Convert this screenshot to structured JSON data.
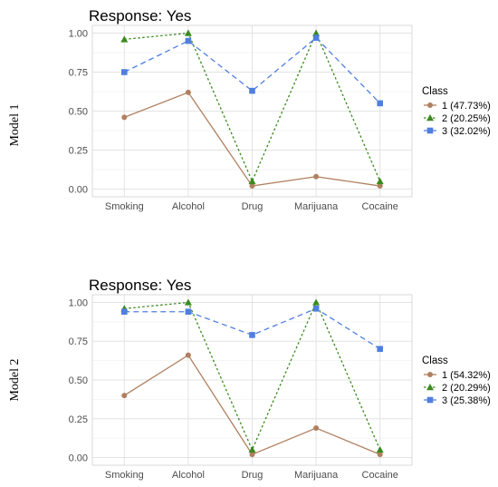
{
  "colors": {
    "class1": "#b08060",
    "class2": "#3a8a1e",
    "class3": "#4f7fe0"
  },
  "chart_data": [
    {
      "type": "line",
      "title": "Response: Yes",
      "row_label": "Model 1",
      "categories": [
        "Smoking",
        "Alcohol",
        "Drug",
        "Marijuana",
        "Cocaine"
      ],
      "ylim": [
        0,
        1
      ],
      "yticks": [
        "0.00",
        "0.25",
        "0.50",
        "0.75",
        "1.00"
      ],
      "legend_title": "Class",
      "legend_position": "right",
      "grid": true,
      "series": [
        {
          "name": "1 (47.73%)",
          "values": [
            0.46,
            0.62,
            0.02,
            0.08,
            0.02
          ],
          "line": "solid",
          "marker": "circle"
        },
        {
          "name": "2 (20.25%)",
          "values": [
            0.96,
            1.0,
            0.05,
            1.0,
            0.05
          ],
          "line": "dotted",
          "marker": "triangle"
        },
        {
          "name": "3 (32.02%)",
          "values": [
            0.75,
            0.95,
            0.63,
            0.97,
            0.55
          ],
          "line": "dashed",
          "marker": "square"
        }
      ]
    },
    {
      "type": "line",
      "title": "Response: Yes",
      "row_label": "Model 2",
      "categories": [
        "Smoking",
        "Alcohol",
        "Drug",
        "Marijuana",
        "Cocaine"
      ],
      "ylim": [
        0,
        1
      ],
      "yticks": [
        "0.00",
        "0.25",
        "0.50",
        "0.75",
        "1.00"
      ],
      "legend_title": "Class",
      "legend_position": "right",
      "grid": true,
      "series": [
        {
          "name": "1 (54.32%)",
          "values": [
            0.4,
            0.66,
            0.02,
            0.19,
            0.02
          ],
          "line": "solid",
          "marker": "circle"
        },
        {
          "name": "2 (20.29%)",
          "values": [
            0.96,
            1.0,
            0.05,
            1.0,
            0.05
          ],
          "line": "dotted",
          "marker": "triangle"
        },
        {
          "name": "3 (25.38%)",
          "values": [
            0.94,
            0.94,
            0.79,
            0.96,
            0.7
          ],
          "line": "dashed",
          "marker": "square"
        }
      ]
    }
  ]
}
